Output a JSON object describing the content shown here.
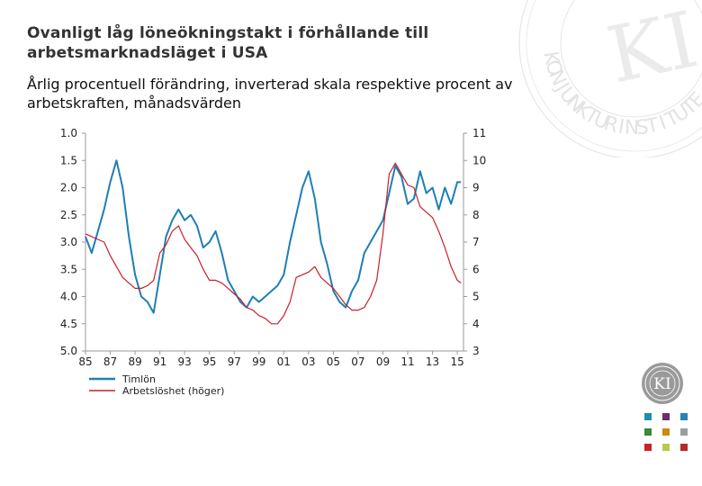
{
  "title": "Ovanligt låg löneökningstakt i förhållande till arbetsmarknadsläget i USA",
  "subtitle": "Årlig procentuell förändring, inverterad skala respektive procent av arbetskraften, månadsvärden",
  "watermark": {
    "text": "KONJUNKTURINSTITUTET",
    "monogram": "KI"
  },
  "logo": {
    "monogram": "KI"
  },
  "palette": [
    "#1f8fb0",
    "#6b2d6b",
    "#2c7fb8",
    "#3a8a3a",
    "#c98a14",
    "#9aa0a0",
    "#c8252a",
    "#b7c94a",
    "#b52a2a"
  ],
  "chart_data": {
    "type": "line",
    "title": "Ovanligt låg löneökningstakt i förhållande till arbetsmarknadsläget i USA",
    "xlabel": "",
    "ylabel_left": "",
    "ylabel_right": "",
    "x_ticks": [
      "85",
      "87",
      "89",
      "91",
      "93",
      "95",
      "97",
      "99",
      "01",
      "03",
      "05",
      "07",
      "09",
      "11",
      "13",
      "15"
    ],
    "x_range": [
      1985,
      2015.5
    ],
    "y_left_ticks": [
      "1.0",
      "1.5",
      "2.0",
      "2.5",
      "3.0",
      "3.5",
      "4.0",
      "4.5",
      "5.0"
    ],
    "y_left_range": [
      5.0,
      1.0
    ],
    "y_left_inverted": true,
    "y_right_ticks": [
      "11",
      "10",
      "9",
      "8",
      "7",
      "6",
      "5",
      "4",
      "3"
    ],
    "y_right_range": [
      3,
      11
    ],
    "grid": false,
    "legend": "bottom-left",
    "series": [
      {
        "name": "Timlön",
        "axis": "left",
        "color": "#1f7fb4",
        "x": [
          1985.0,
          1985.5,
          1986.0,
          1986.5,
          1987.0,
          1987.5,
          1988.0,
          1988.5,
          1989.0,
          1989.5,
          1990.0,
          1990.5,
          1991.0,
          1991.5,
          1992.0,
          1992.5,
          1993.0,
          1993.5,
          1994.0,
          1994.5,
          1995.0,
          1995.5,
          1996.0,
          1996.5,
          1997.0,
          1997.5,
          1998.0,
          1998.5,
          1999.0,
          1999.5,
          2000.0,
          2000.5,
          2001.0,
          2001.5,
          2002.0,
          2002.5,
          2003.0,
          2003.5,
          2004.0,
          2004.5,
          2005.0,
          2005.5,
          2006.0,
          2006.5,
          2007.0,
          2007.5,
          2008.0,
          2008.5,
          2009.0,
          2009.5,
          2010.0,
          2010.5,
          2011.0,
          2011.5,
          2012.0,
          2012.5,
          2013.0,
          2013.5,
          2014.0,
          2014.5,
          2015.0,
          2015.3
        ],
        "values": [
          2.9,
          3.2,
          2.8,
          2.4,
          1.9,
          1.5,
          2.0,
          2.9,
          3.6,
          4.0,
          4.1,
          4.3,
          3.6,
          2.9,
          2.6,
          2.4,
          2.6,
          2.5,
          2.7,
          3.1,
          3.0,
          2.8,
          3.2,
          3.7,
          3.9,
          4.1,
          4.2,
          4.0,
          4.1,
          4.0,
          3.9,
          3.8,
          3.6,
          3.0,
          2.5,
          2.0,
          1.7,
          2.2,
          3.0,
          3.4,
          3.9,
          4.1,
          4.2,
          3.9,
          3.7,
          3.2,
          3.0,
          2.8,
          2.6,
          2.1,
          1.6,
          1.8,
          2.3,
          2.2,
          1.7,
          2.1,
          2.0,
          2.4,
          2.0,
          2.3,
          1.9,
          1.9
        ]
      },
      {
        "name": "Arbetslöshet (höger)",
        "axis": "right",
        "color": "#c8202a",
        "x": [
          1985.0,
          1985.5,
          1986.0,
          1986.5,
          1987.0,
          1987.5,
          1988.0,
          1988.5,
          1989.0,
          1989.5,
          1990.0,
          1990.5,
          1991.0,
          1991.5,
          1992.0,
          1992.5,
          1993.0,
          1993.5,
          1994.0,
          1994.5,
          1995.0,
          1995.5,
          1996.0,
          1996.5,
          1997.0,
          1997.5,
          1998.0,
          1998.5,
          1999.0,
          1999.5,
          2000.0,
          2000.5,
          2001.0,
          2001.5,
          2002.0,
          2002.5,
          2003.0,
          2003.5,
          2004.0,
          2004.5,
          2005.0,
          2005.5,
          2006.0,
          2006.5,
          2007.0,
          2007.5,
          2008.0,
          2008.5,
          2009.0,
          2009.5,
          2010.0,
          2010.5,
          2011.0,
          2011.5,
          2012.0,
          2012.5,
          2013.0,
          2013.5,
          2014.0,
          2014.5,
          2015.0,
          2015.3
        ],
        "values": [
          7.3,
          7.2,
          7.1,
          7.0,
          6.5,
          6.1,
          5.7,
          5.5,
          5.3,
          5.3,
          5.4,
          5.6,
          6.6,
          6.9,
          7.4,
          7.6,
          7.1,
          6.8,
          6.5,
          6.0,
          5.6,
          5.6,
          5.5,
          5.3,
          5.1,
          4.9,
          4.6,
          4.5,
          4.3,
          4.2,
          4.0,
          4.0,
          4.3,
          4.8,
          5.7,
          5.8,
          5.9,
          6.1,
          5.7,
          5.5,
          5.3,
          5.0,
          4.7,
          4.5,
          4.5,
          4.6,
          5.0,
          5.6,
          7.3,
          9.5,
          9.9,
          9.5,
          9.1,
          9.0,
          8.3,
          8.1,
          7.9,
          7.4,
          6.8,
          6.1,
          5.6,
          5.5
        ]
      }
    ]
  }
}
